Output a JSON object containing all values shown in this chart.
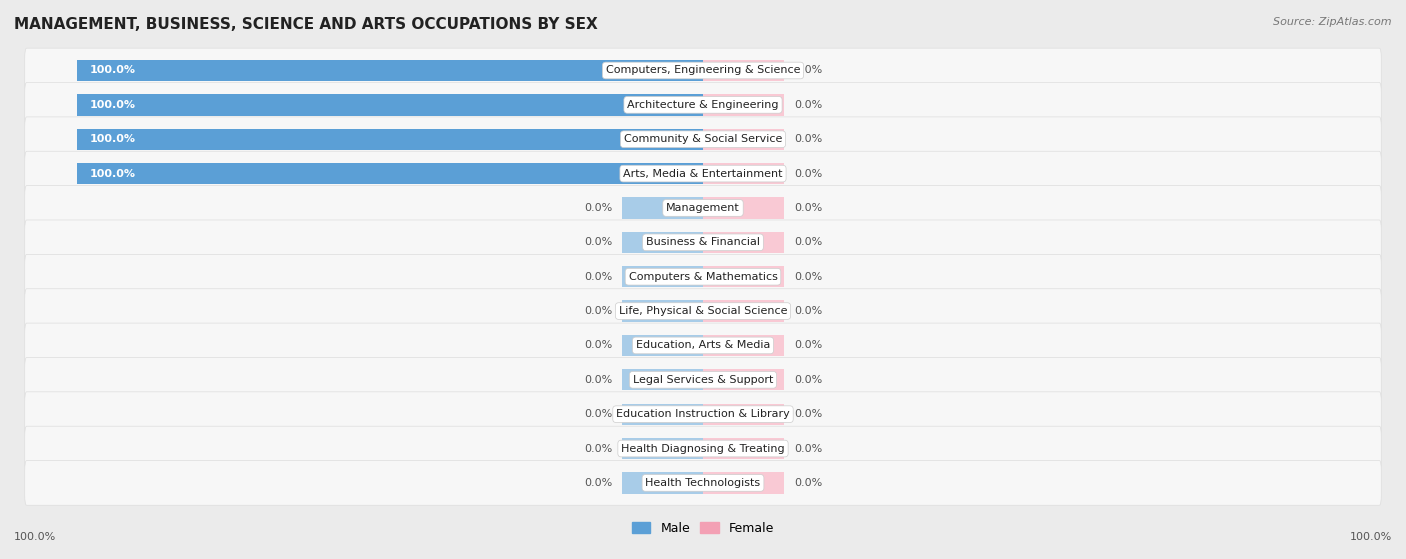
{
  "title": "MANAGEMENT, BUSINESS, SCIENCE AND ARTS OCCUPATIONS BY SEX",
  "source": "Source: ZipAtlas.com",
  "categories": [
    "Computers, Engineering & Science",
    "Architecture & Engineering",
    "Community & Social Service",
    "Arts, Media & Entertainment",
    "Management",
    "Business & Financial",
    "Computers & Mathematics",
    "Life, Physical & Social Science",
    "Education, Arts & Media",
    "Legal Services & Support",
    "Education Instruction & Library",
    "Health Diagnosing & Treating",
    "Health Technologists"
  ],
  "male_values": [
    100.0,
    100.0,
    100.0,
    100.0,
    0.0,
    0.0,
    0.0,
    0.0,
    0.0,
    0.0,
    0.0,
    0.0,
    0.0
  ],
  "female_values": [
    0.0,
    0.0,
    0.0,
    0.0,
    0.0,
    0.0,
    0.0,
    0.0,
    0.0,
    0.0,
    0.0,
    0.0,
    0.0
  ],
  "male_color_full": "#5b9fd6",
  "female_color_full": "#f3a0b4",
  "male_color_stub": "#a8cce8",
  "female_color_stub": "#f9c9d4",
  "bg_color": "#ebebeb",
  "row_bg_color": "#f7f7f7",
  "title_fontsize": 11,
  "source_fontsize": 8,
  "label_fontsize": 8,
  "cat_fontsize": 8,
  "legend_fontsize": 9,
  "stub_size": 13.0,
  "x_range": 100
}
